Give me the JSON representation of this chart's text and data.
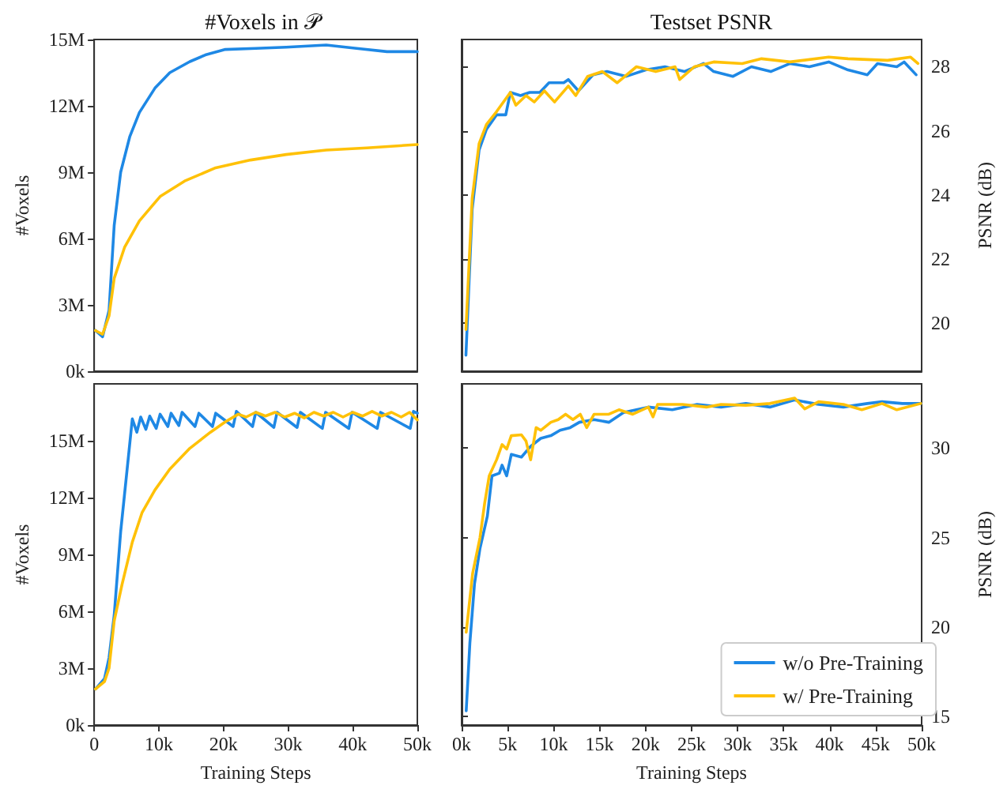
{
  "chart_data": [
    {
      "type": "line",
      "title": "#Voxels in 𝒫",
      "ylabel": "#Voxels",
      "xlim": [
        0,
        50000
      ],
      "ylim": [
        0,
        15000000
      ],
      "yticks": [
        {
          "value": 0,
          "label": "0k"
        },
        {
          "value": 3000000,
          "label": "3M"
        },
        {
          "value": 6000000,
          "label": "6M"
        },
        {
          "value": 9000000,
          "label": "9M"
        },
        {
          "value": 12000000,
          "label": "12M"
        },
        {
          "value": 15000000,
          "label": "15M"
        }
      ],
      "tick_labels": "y",
      "grid": false,
      "line_style": "solid",
      "series": [
        {
          "color": "#1e88e5",
          "x": [
            200,
            1300,
            2300,
            3100,
            4100,
            5500,
            7000,
            9400,
            11700,
            14800,
            17200,
            20300,
            25000,
            29700,
            35900,
            40600,
            45300,
            50000
          ],
          "values": [
            1840000,
            1560000,
            2750000,
            6600000,
            9000000,
            10600000,
            11700000,
            12800000,
            13500000,
            14000000,
            14300000,
            14550000,
            14600000,
            14650000,
            14750000,
            14600000,
            14450000,
            14450000
          ]
        },
        {
          "color": "#ffc107",
          "x": [
            200,
            1300,
            2300,
            3100,
            4700,
            7000,
            10200,
            14000,
            18800,
            24200,
            29700,
            35900,
            42200,
            50000
          ],
          "values": [
            1840000,
            1670000,
            2500000,
            4200000,
            5600000,
            6800000,
            7900000,
            8600000,
            9200000,
            9550000,
            9800000,
            10000000,
            10100000,
            10250000
          ]
        }
      ]
    },
    {
      "type": "line",
      "title": "Testset PSNR",
      "ylabel": "PSNR (dB)",
      "xlim": [
        0,
        50000
      ],
      "ylim": [
        18.5,
        28.85
      ],
      "yticks": [
        20,
        22,
        24,
        26,
        28
      ],
      "tick_labels": "y",
      "grid": false,
      "line_style": "solid",
      "series": [
        {
          "color": "#1e88e5",
          "x": [
            470,
            1150,
            1900,
            2700,
            3800,
            4800,
            5300,
            6400,
            7400,
            8500,
            9500,
            11100,
            11600,
            12700,
            14300,
            15800,
            17900,
            20000,
            22100,
            24200,
            26300,
            27400,
            29500,
            31500,
            33600,
            35700,
            37800,
            39900,
            42000,
            44100,
            45200,
            47300,
            48100,
            49400
          ],
          "values": [
            19.0,
            23.56,
            25.4,
            26.05,
            26.5,
            26.5,
            27.2,
            27.1,
            27.2,
            27.2,
            27.5,
            27.5,
            27.6,
            27.25,
            27.75,
            27.85,
            27.7,
            27.9,
            28.0,
            27.85,
            28.1,
            27.85,
            27.7,
            28.0,
            27.85,
            28.1,
            28.0,
            28.15,
            27.9,
            27.75,
            28.1,
            28.0,
            28.15,
            27.75
          ]
        },
        {
          "color": "#ffc107",
          "x": [
            470,
            1150,
            1900,
            2700,
            3800,
            5300,
            5900,
            7000,
            7900,
            9000,
            10100,
            11600,
            12400,
            13700,
            15300,
            16900,
            19000,
            21100,
            23200,
            23700,
            25300,
            27400,
            30500,
            32600,
            35700,
            39900,
            42000,
            46300,
            48800,
            49600
          ],
          "values": [
            19.8,
            23.9,
            25.6,
            26.2,
            26.6,
            27.2,
            26.8,
            27.1,
            26.9,
            27.25,
            26.9,
            27.4,
            27.1,
            27.7,
            27.85,
            27.5,
            28.0,
            27.85,
            28.0,
            27.6,
            28.0,
            28.15,
            28.1,
            28.25,
            28.15,
            28.3,
            28.25,
            28.2,
            28.3,
            28.1
          ]
        }
      ]
    },
    {
      "type": "line",
      "xlabel": "Training Steps",
      "ylabel": "#Voxels",
      "xlim": [
        0,
        50000
      ],
      "ylim": [
        0,
        18000000
      ],
      "xticks": [
        0,
        {
          "value": 10000,
          "label": "10k"
        },
        {
          "value": 20000,
          "label": "20k"
        },
        {
          "value": 30000,
          "label": "30k"
        },
        {
          "value": 40000,
          "label": "40k"
        },
        {
          "value": 50000,
          "label": "50k"
        }
      ],
      "yticks": [
        {
          "value": 0,
          "label": "0k"
        },
        {
          "value": 3000000,
          "label": "3M"
        },
        {
          "value": 6000000,
          "label": "6M"
        },
        {
          "value": 9000000,
          "label": "9M"
        },
        {
          "value": 12000000,
          "label": "12M"
        },
        {
          "value": 15000000,
          "label": "15M"
        }
      ],
      "grid": false,
      "line_style": "solid",
      "series": [
        {
          "color": "#1e88e5",
          "x": [
            200,
            1600,
            2300,
            3100,
            4100,
            5100,
            5900,
            6600,
            7200,
            8000,
            8600,
            9600,
            10200,
            11400,
            11900,
            13100,
            13600,
            15600,
            16200,
            18300,
            18800,
            21500,
            22000,
            24500,
            25000,
            27800,
            28300,
            31400,
            31900,
            35300,
            35800,
            39400,
            39900,
            43800,
            44300,
            48900,
            49400,
            50000
          ],
          "values": [
            1900000,
            2450000,
            3550000,
            5800000,
            10200000,
            13500000,
            16150000,
            15450000,
            16250000,
            15600000,
            16300000,
            15650000,
            16400000,
            15750000,
            16450000,
            15800000,
            16500000,
            15750000,
            16450000,
            15750000,
            16450000,
            15750000,
            16550000,
            15750000,
            16500000,
            15700000,
            16500000,
            15700000,
            16500000,
            15650000,
            16500000,
            15650000,
            16500000,
            15650000,
            16500000,
            15650000,
            16550000,
            16450000
          ]
        },
        {
          "color": "#ffc107",
          "x": [
            200,
            1600,
            2300,
            3100,
            4300,
            5900,
            7400,
            9400,
            11700,
            14800,
            18000,
            20300,
            22300,
            23500,
            25000,
            26500,
            28000,
            29500,
            31000,
            32500,
            34000,
            35500,
            37000,
            38500,
            40000,
            41500,
            43000,
            44500,
            46000,
            47500,
            48800,
            50000
          ],
          "values": [
            1900000,
            2300000,
            3000000,
            5500000,
            7400000,
            9650000,
            11200000,
            12400000,
            13500000,
            14600000,
            15450000,
            16000000,
            16400000,
            16250000,
            16500000,
            16300000,
            16500000,
            16250000,
            16450000,
            16200000,
            16500000,
            16300000,
            16500000,
            16250000,
            16500000,
            16300000,
            16550000,
            16300000,
            16500000,
            16250000,
            16500000,
            16100000
          ]
        }
      ]
    },
    {
      "type": "line",
      "xlabel": "Training Steps",
      "ylabel": "PSNR (dB)",
      "xlim": [
        0,
        50000
      ],
      "ylim": [
        14.5,
        33.6
      ],
      "xticks": [
        {
          "value": 0,
          "label": "0k"
        },
        {
          "value": 5000,
          "label": "5k"
        },
        {
          "value": 10000,
          "label": "10k"
        },
        {
          "value": 15000,
          "label": "15k"
        },
        {
          "value": 20000,
          "label": "20k"
        },
        {
          "value": 25000,
          "label": "25k"
        },
        {
          "value": 30000,
          "label": "30k"
        },
        {
          "value": 35000,
          "label": "35k"
        },
        {
          "value": 40000,
          "label": "40k"
        },
        {
          "value": 45000,
          "label": "45k"
        },
        {
          "value": 50000,
          "label": "50k"
        }
      ],
      "yticks": [
        15,
        20,
        25,
        30
      ],
      "grid": false,
      "legend": "bottom right",
      "line_style": "solid",
      "series": [
        {
          "name": "w/o Pre-Training",
          "color": "#1e88e5",
          "x": [
            500,
            900,
            1400,
            2000,
            2800,
            3300,
            4100,
            4400,
            4900,
            5400,
            6500,
            7500,
            8600,
            9700,
            10700,
            11800,
            12800,
            14400,
            16000,
            17600,
            20300,
            22900,
            25600,
            28200,
            30900,
            33500,
            36200,
            38800,
            41500,
            44100,
            45700,
            47900,
            49900
          ],
          "values": [
            15.3,
            19.1,
            22.4,
            24.4,
            26.2,
            28.45,
            28.6,
            29.05,
            28.45,
            29.65,
            29.5,
            30.1,
            30.55,
            30.7,
            31.0,
            31.15,
            31.45,
            31.6,
            31.45,
            32.0,
            32.3,
            32.15,
            32.45,
            32.3,
            32.5,
            32.3,
            32.7,
            32.45,
            32.3,
            32.5,
            32.6,
            32.5,
            32.5
          ]
        },
        {
          "name": "w/ Pre-Training",
          "color": "#ffc107",
          "x": [
            500,
            1200,
            2000,
            2500,
            3000,
            3800,
            4400,
            4900,
            5400,
            6500,
            7000,
            7500,
            8100,
            8600,
            9700,
            10500,
            11300,
            12100,
            12900,
            13600,
            14400,
            16000,
            17100,
            18600,
            20300,
            20800,
            21300,
            24000,
            26600,
            28200,
            30900,
            33500,
            36200,
            37300,
            38800,
            41500,
            43500,
            45700,
            47300,
            49900
          ],
          "values": [
            19.7,
            23.0,
            25.0,
            26.9,
            28.45,
            29.35,
            30.2,
            29.95,
            30.7,
            30.75,
            30.4,
            29.35,
            31.15,
            31.0,
            31.45,
            31.6,
            31.9,
            31.6,
            31.9,
            31.15,
            31.9,
            31.9,
            32.15,
            31.9,
            32.3,
            31.75,
            32.45,
            32.45,
            32.3,
            32.45,
            32.4,
            32.5,
            32.8,
            32.2,
            32.6,
            32.45,
            32.15,
            32.5,
            32.15,
            32.5
          ]
        }
      ]
    }
  ]
}
